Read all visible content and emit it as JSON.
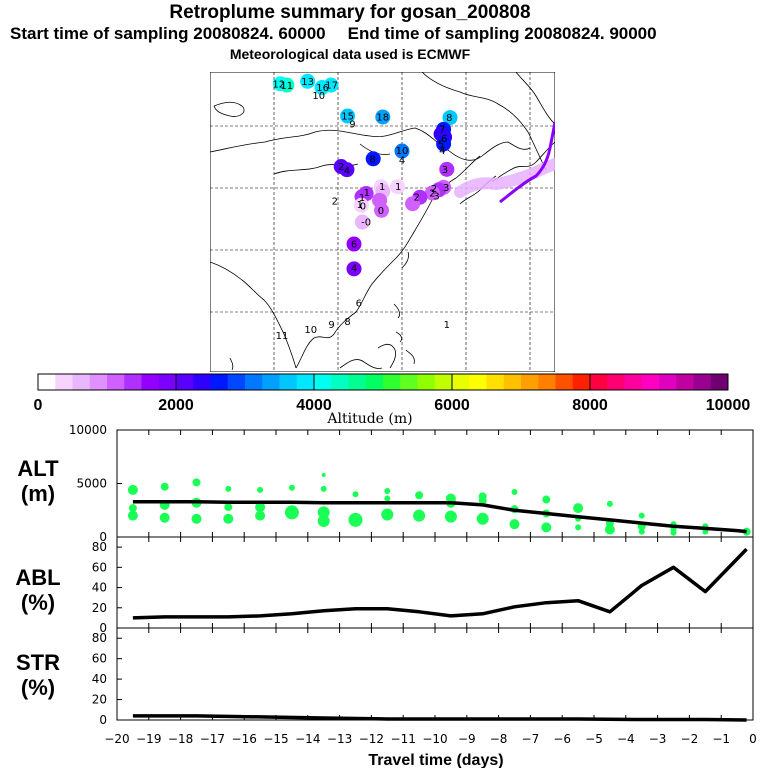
{
  "header": {
    "title": "Retroplume summary for gosan_200808",
    "start_time": "Start time of sampling 20080824. 60000",
    "end_time": "End time of sampling 20080824. 90000",
    "met_note": "Meteorological data used is ECMWF"
  },
  "map": {
    "markers": [
      {
        "label": "8",
        "lon": 150.0,
        "lat": 55.3,
        "alt": 3700
      },
      {
        "label": "7",
        "lon": 148.0,
        "lat": 51.5,
        "alt": 2500
      },
      {
        "label": "1",
        "lon": 147.2,
        "lat": 50.0,
        "alt": 2300
      },
      {
        "label": "4",
        "lon": 148.3,
        "lat": 49.0,
        "alt": 2400
      },
      {
        "label": "5",
        "lon": 148.0,
        "lat": 46.8,
        "alt": 2700
      },
      {
        "label": "3",
        "lon": 149.0,
        "lat": 38.6,
        "alt": 1400
      },
      {
        "label": "3",
        "lon": 148.0,
        "lat": 32.8,
        "alt": 1200
      },
      {
        "label": "2",
        "lon": 146.5,
        "lat": 32.0,
        "alt": 1300
      },
      {
        "label": "3",
        "lon": 144.5,
        "lat": 31.0,
        "alt": 1200
      },
      {
        "label": "2",
        "lon": 140.6,
        "lat": 29.6,
        "alt": 1300
      },
      {
        "label": "2",
        "lon": 138.3,
        "lat": 27.5,
        "alt": 1200
      },
      {
        "label": "1",
        "lon": 133.6,
        "lat": 33.0,
        "alt": 300
      },
      {
        "label": "1",
        "lon": 128.5,
        "lat": 33.0,
        "alt": 400
      },
      {
        "label": "1",
        "lon": 129.0,
        "lat": 31.5,
        "alt": 600
      },
      {
        "label": "1",
        "lon": 123.8,
        "lat": 30.8,
        "alt": 1300
      },
      {
        "label": "1",
        "lon": 122.5,
        "lat": 29.8,
        "alt": 1400
      },
      {
        "label": "0",
        "lon": 128.0,
        "lat": 28.6,
        "alt": 1200
      },
      {
        "label": "1",
        "lon": 122.3,
        "lat": 27.0,
        "alt": 400
      },
      {
        "label": "0",
        "lon": 128.6,
        "lat": 25.4,
        "alt": 1200
      },
      {
        "label": "0",
        "lon": 122.6,
        "lat": 21.6,
        "alt": 600
      },
      {
        "label": "6",
        "lon": 120.0,
        "lat": 14.5,
        "alt": 1500
      },
      {
        "label": "4",
        "lon": 120.0,
        "lat": 6.5,
        "alt": 1800
      },
      {
        "label": "2",
        "lon": 116.0,
        "lat": 39.5,
        "alt": 2200
      },
      {
        "label": "4",
        "lon": 117.8,
        "lat": 38.5,
        "alt": 2000
      },
      {
        "label": "8",
        "lon": 126.0,
        "lat": 42.0,
        "alt": 2700
      },
      {
        "label": "10",
        "lon": 135.0,
        "lat": 44.5,
        "alt": 3000
      },
      {
        "label": "18",
        "lon": 129.0,
        "lat": 55.5,
        "alt": 3400
      },
      {
        "label": "15",
        "lon": 118.0,
        "lat": 55.8,
        "alt": 3700
      },
      {
        "label": "17",
        "lon": 112.8,
        "lat": 65.8,
        "alt": 3900
      },
      {
        "label": "16",
        "lon": 110.0,
        "lat": 65.0,
        "alt": 3900
      },
      {
        "label": "13",
        "lon": 105.5,
        "lat": 67.0,
        "alt": 3800
      },
      {
        "label": "11",
        "lon": 99.0,
        "lat": 65.8,
        "alt": 4300
      },
      {
        "label": "12",
        "lon": 97.0,
        "lat": 66.2,
        "alt": 4200
      }
    ],
    "labels": [
      {
        "text": "8",
        "lon": 149.8,
        "lat": 55.3
      },
      {
        "text": "7",
        "lon": 147.6,
        "lat": 51.6
      },
      {
        "text": "6",
        "lon": 148.2,
        "lat": 48.5
      },
      {
        "text": "5",
        "lon": 147.2,
        "lat": 46.8
      },
      {
        "text": "4",
        "lon": 147.6,
        "lat": 44.6
      },
      {
        "text": "3",
        "lon": 148.4,
        "lat": 38.6
      },
      {
        "text": "3",
        "lon": 148.8,
        "lat": 32.8
      },
      {
        "text": "2",
        "lon": 145.0,
        "lat": 32.5
      },
      {
        "text": "2",
        "lon": 144.5,
        "lat": 31.0
      },
      {
        "text": "3",
        "lon": 145.8,
        "lat": 30.0
      },
      {
        "text": "2",
        "lon": 139.6,
        "lat": 29.6
      },
      {
        "text": "1",
        "lon": 133.8,
        "lat": 33.0
      },
      {
        "text": "1",
        "lon": 128.8,
        "lat": 33.0
      },
      {
        "text": "1",
        "lon": 124.0,
        "lat": 31.2
      },
      {
        "text": "1",
        "lon": 122.5,
        "lat": 29.5
      },
      {
        "text": "2",
        "lon": 114.0,
        "lat": 28.4
      },
      {
        "text": "1",
        "lon": 121.8,
        "lat": 27.2
      },
      {
        "text": "0",
        "lon": 122.8,
        "lat": 26.7
      },
      {
        "text": "-0",
        "lon": 123.8,
        "lat": 21.6
      },
      {
        "text": "0",
        "lon": 128.4,
        "lat": 25.4
      },
      {
        "text": "6",
        "lon": 120.0,
        "lat": 14.5
      },
      {
        "text": "4",
        "lon": 120.0,
        "lat": 6.8
      },
      {
        "text": "2",
        "lon": 116.0,
        "lat": 39.5
      },
      {
        "text": "4",
        "lon": 117.8,
        "lat": 38.3
      },
      {
        "text": "8",
        "lon": 125.8,
        "lat": 42.0
      },
      {
        "text": "10",
        "lon": 135.0,
        "lat": 44.6
      },
      {
        "text": "4",
        "lon": 135.0,
        "lat": 41.6
      },
      {
        "text": "18",
        "lon": 129.0,
        "lat": 55.5
      },
      {
        "text": "15",
        "lon": 118.0,
        "lat": 55.8
      },
      {
        "text": "9",
        "lon": 119.5,
        "lat": 53.2
      },
      {
        "text": "17",
        "lon": 113.0,
        "lat": 65.8
      },
      {
        "text": "16",
        "lon": 110.2,
        "lat": 65.0
      },
      {
        "text": "10",
        "lon": 109.0,
        "lat": 62.4
      },
      {
        "text": "13",
        "lon": 105.5,
        "lat": 67.0
      },
      {
        "text": "11",
        "lon": 99.0,
        "lat": 65.6
      },
      {
        "text": "12",
        "lon": 96.5,
        "lat": 66.2
      },
      {
        "text": "6",
        "lon": 121.5,
        "lat": -4.5
      },
      {
        "text": "8",
        "lon": 118.0,
        "lat": -10.5
      },
      {
        "text": "9",
        "lon": 113.0,
        "lat": -11.5
      },
      {
        "text": "10",
        "lon": 106.5,
        "lat": -13.0
      },
      {
        "text": "11",
        "lon": 97.5,
        "lat": -15.0
      },
      {
        "text": "1",
        "lon": 149.0,
        "lat": -11.5
      }
    ]
  },
  "colorbar": {
    "ticks": [
      0,
      2000,
      4000,
      6000,
      8000,
      10000
    ],
    "label": "Altitude (m)",
    "colors": [
      "#ffffff",
      "#f6d4ff",
      "#eab7ff",
      "#e090ff",
      "#d060ff",
      "#b030ff",
      "#9400ff",
      "#7a00ff",
      "#5a00ff",
      "#3000ff",
      "#0018ff",
      "#0048ff",
      "#0078ff",
      "#00a0ff",
      "#00c8ff",
      "#00e8ff",
      "#00fff0",
      "#00ffc0",
      "#00ff90",
      "#00ff60",
      "#30ff30",
      "#60ff20",
      "#90ff00",
      "#c0ff00",
      "#e8ff00",
      "#ffff00",
      "#ffe000",
      "#ffc000",
      "#ffa000",
      "#ff8000",
      "#ff5000",
      "#ff2000",
      "#ff0040",
      "#ff0070",
      "#ff00a0",
      "#ff00c0",
      "#e000c0",
      "#c000a0",
      "#9a0090",
      "#700070"
    ]
  },
  "chart_data": [
    {
      "type": "line",
      "panel": "ALT",
      "ylabel": "ALT (m)",
      "ylim": [
        0,
        10000
      ],
      "yticks": [
        0,
        5000,
        10000
      ],
      "x": [
        -19.5,
        -18.5,
        -17.5,
        -16.5,
        -15.5,
        -14.5,
        -13.5,
        -12.5,
        -11.5,
        -10.5,
        -9.5,
        -8.5,
        -7.5,
        -6.5,
        -5.5,
        -4.5,
        -3.5,
        -2.5,
        -1.5,
        -0.5,
        -0.2
      ],
      "median": [
        3300,
        3300,
        3300,
        3250,
        3250,
        3250,
        3200,
        3200,
        3200,
        3200,
        3200,
        3000,
        2500,
        2200,
        1900,
        1600,
        1300,
        1000,
        800,
        600,
        500
      ],
      "scatter": [
        {
          "x": -19.5,
          "y": 4400,
          "r": 5
        },
        {
          "x": -19.5,
          "y": 2700,
          "r": 4
        },
        {
          "x": -19.5,
          "y": 2000,
          "r": 5
        },
        {
          "x": -18.5,
          "y": 4700,
          "r": 4
        },
        {
          "x": -18.5,
          "y": 3000,
          "r": 5
        },
        {
          "x": -18.5,
          "y": 1800,
          "r": 5
        },
        {
          "x": -17.5,
          "y": 5100,
          "r": 4
        },
        {
          "x": -17.5,
          "y": 3200,
          "r": 5
        },
        {
          "x": -17.5,
          "y": 1700,
          "r": 5
        },
        {
          "x": -16.5,
          "y": 4500,
          "r": 3
        },
        {
          "x": -16.5,
          "y": 2800,
          "r": 4
        },
        {
          "x": -16.5,
          "y": 1700,
          "r": 5
        },
        {
          "x": -15.5,
          "y": 4400,
          "r": 3
        },
        {
          "x": -15.5,
          "y": 2800,
          "r": 5
        },
        {
          "x": -15.5,
          "y": 2000,
          "r": 5
        },
        {
          "x": -14.5,
          "y": 4600,
          "r": 3
        },
        {
          "x": -14.5,
          "y": 2300,
          "r": 7
        },
        {
          "x": -13.5,
          "y": 5800,
          "r": 2
        },
        {
          "x": -13.5,
          "y": 4500,
          "r": 3
        },
        {
          "x": -13.5,
          "y": 2300,
          "r": 6
        },
        {
          "x": -13.5,
          "y": 1500,
          "r": 6
        },
        {
          "x": -12.5,
          "y": 4000,
          "r": 3
        },
        {
          "x": -12.5,
          "y": 1600,
          "r": 7
        },
        {
          "x": -11.5,
          "y": 4300,
          "r": 3
        },
        {
          "x": -11.5,
          "y": 3600,
          "r": 3
        },
        {
          "x": -11.5,
          "y": 2100,
          "r": 6
        },
        {
          "x": -10.5,
          "y": 3900,
          "r": 4
        },
        {
          "x": -10.5,
          "y": 2000,
          "r": 6
        },
        {
          "x": -9.5,
          "y": 3600,
          "r": 5
        },
        {
          "x": -9.5,
          "y": 3200,
          "r": 5
        },
        {
          "x": -9.5,
          "y": 1900,
          "r": 6
        },
        {
          "x": -8.5,
          "y": 3800,
          "r": 4
        },
        {
          "x": -8.5,
          "y": 3400,
          "r": 4
        },
        {
          "x": -8.5,
          "y": 1700,
          "r": 6
        },
        {
          "x": -7.5,
          "y": 4200,
          "r": 3
        },
        {
          "x": -7.5,
          "y": 2600,
          "r": 4
        },
        {
          "x": -7.5,
          "y": 1200,
          "r": 5
        },
        {
          "x": -6.5,
          "y": 3500,
          "r": 4
        },
        {
          "x": -6.5,
          "y": 2200,
          "r": 4
        },
        {
          "x": -6.5,
          "y": 900,
          "r": 5
        },
        {
          "x": -5.5,
          "y": 2700,
          "r": 5
        },
        {
          "x": -5.5,
          "y": 1700,
          "r": 3
        },
        {
          "x": -5.5,
          "y": 900,
          "r": 3
        },
        {
          "x": -4.5,
          "y": 3100,
          "r": 3
        },
        {
          "x": -4.5,
          "y": 1300,
          "r": 4
        },
        {
          "x": -4.5,
          "y": 700,
          "r": 5
        },
        {
          "x": -3.5,
          "y": 2000,
          "r": 3
        },
        {
          "x": -3.5,
          "y": 1000,
          "r": 4
        },
        {
          "x": -3.5,
          "y": 500,
          "r": 3
        },
        {
          "x": -2.5,
          "y": 1200,
          "r": 3
        },
        {
          "x": -2.5,
          "y": 700,
          "r": 3
        },
        {
          "x": -2.5,
          "y": 400,
          "r": 3
        },
        {
          "x": -1.5,
          "y": 1000,
          "r": 3
        },
        {
          "x": -1.5,
          "y": 500,
          "r": 3
        },
        {
          "x": -0.2,
          "y": 500,
          "r": 4
        }
      ]
    },
    {
      "type": "line",
      "panel": "ABL",
      "ylabel": "ABL (%)",
      "ylim": [
        0,
        90
      ],
      "yticks": [
        0,
        20,
        40,
        60,
        80
      ],
      "x": [
        -19.5,
        -18.5,
        -17.5,
        -16.5,
        -15.5,
        -14.5,
        -13.5,
        -12.5,
        -11.5,
        -10.5,
        -9.5,
        -8.5,
        -7.5,
        -6.5,
        -5.5,
        -4.5,
        -3.5,
        -2.5,
        -1.5,
        -0.2
      ],
      "values": [
        10,
        11,
        11,
        11,
        12,
        14,
        17,
        19,
        19,
        16,
        12,
        14,
        21,
        25,
        27,
        16,
        42,
        60,
        36,
        78
      ]
    },
    {
      "type": "line",
      "panel": "STR",
      "ylabel": "STR (%)",
      "ylim": [
        0,
        90
      ],
      "yticks": [
        0,
        20,
        40,
        60,
        80
      ],
      "x": [
        -19.5,
        -17.5,
        -15.5,
        -13.5,
        -11.5,
        -9.5,
        -7.5,
        -5.5,
        -3.5,
        -1.5,
        -0.2
      ],
      "values": [
        4,
        4,
        3,
        2,
        1,
        1,
        1,
        1,
        0.5,
        0.5,
        0
      ]
    }
  ],
  "xaxis": {
    "label": "Travel time (days)",
    "ticks": [
      -20,
      -19,
      -18,
      -17,
      -16,
      -15,
      -14,
      -13,
      -12,
      -11,
      -10,
      -9,
      -8,
      -7,
      -6,
      -5,
      -4,
      -3,
      -2,
      -1,
      0
    ]
  },
  "panel_labels": {
    "alt": [
      "ALT",
      "(m)"
    ],
    "abl": [
      "ABL",
      "(%)"
    ],
    "str": [
      "STR",
      "(%)"
    ]
  }
}
